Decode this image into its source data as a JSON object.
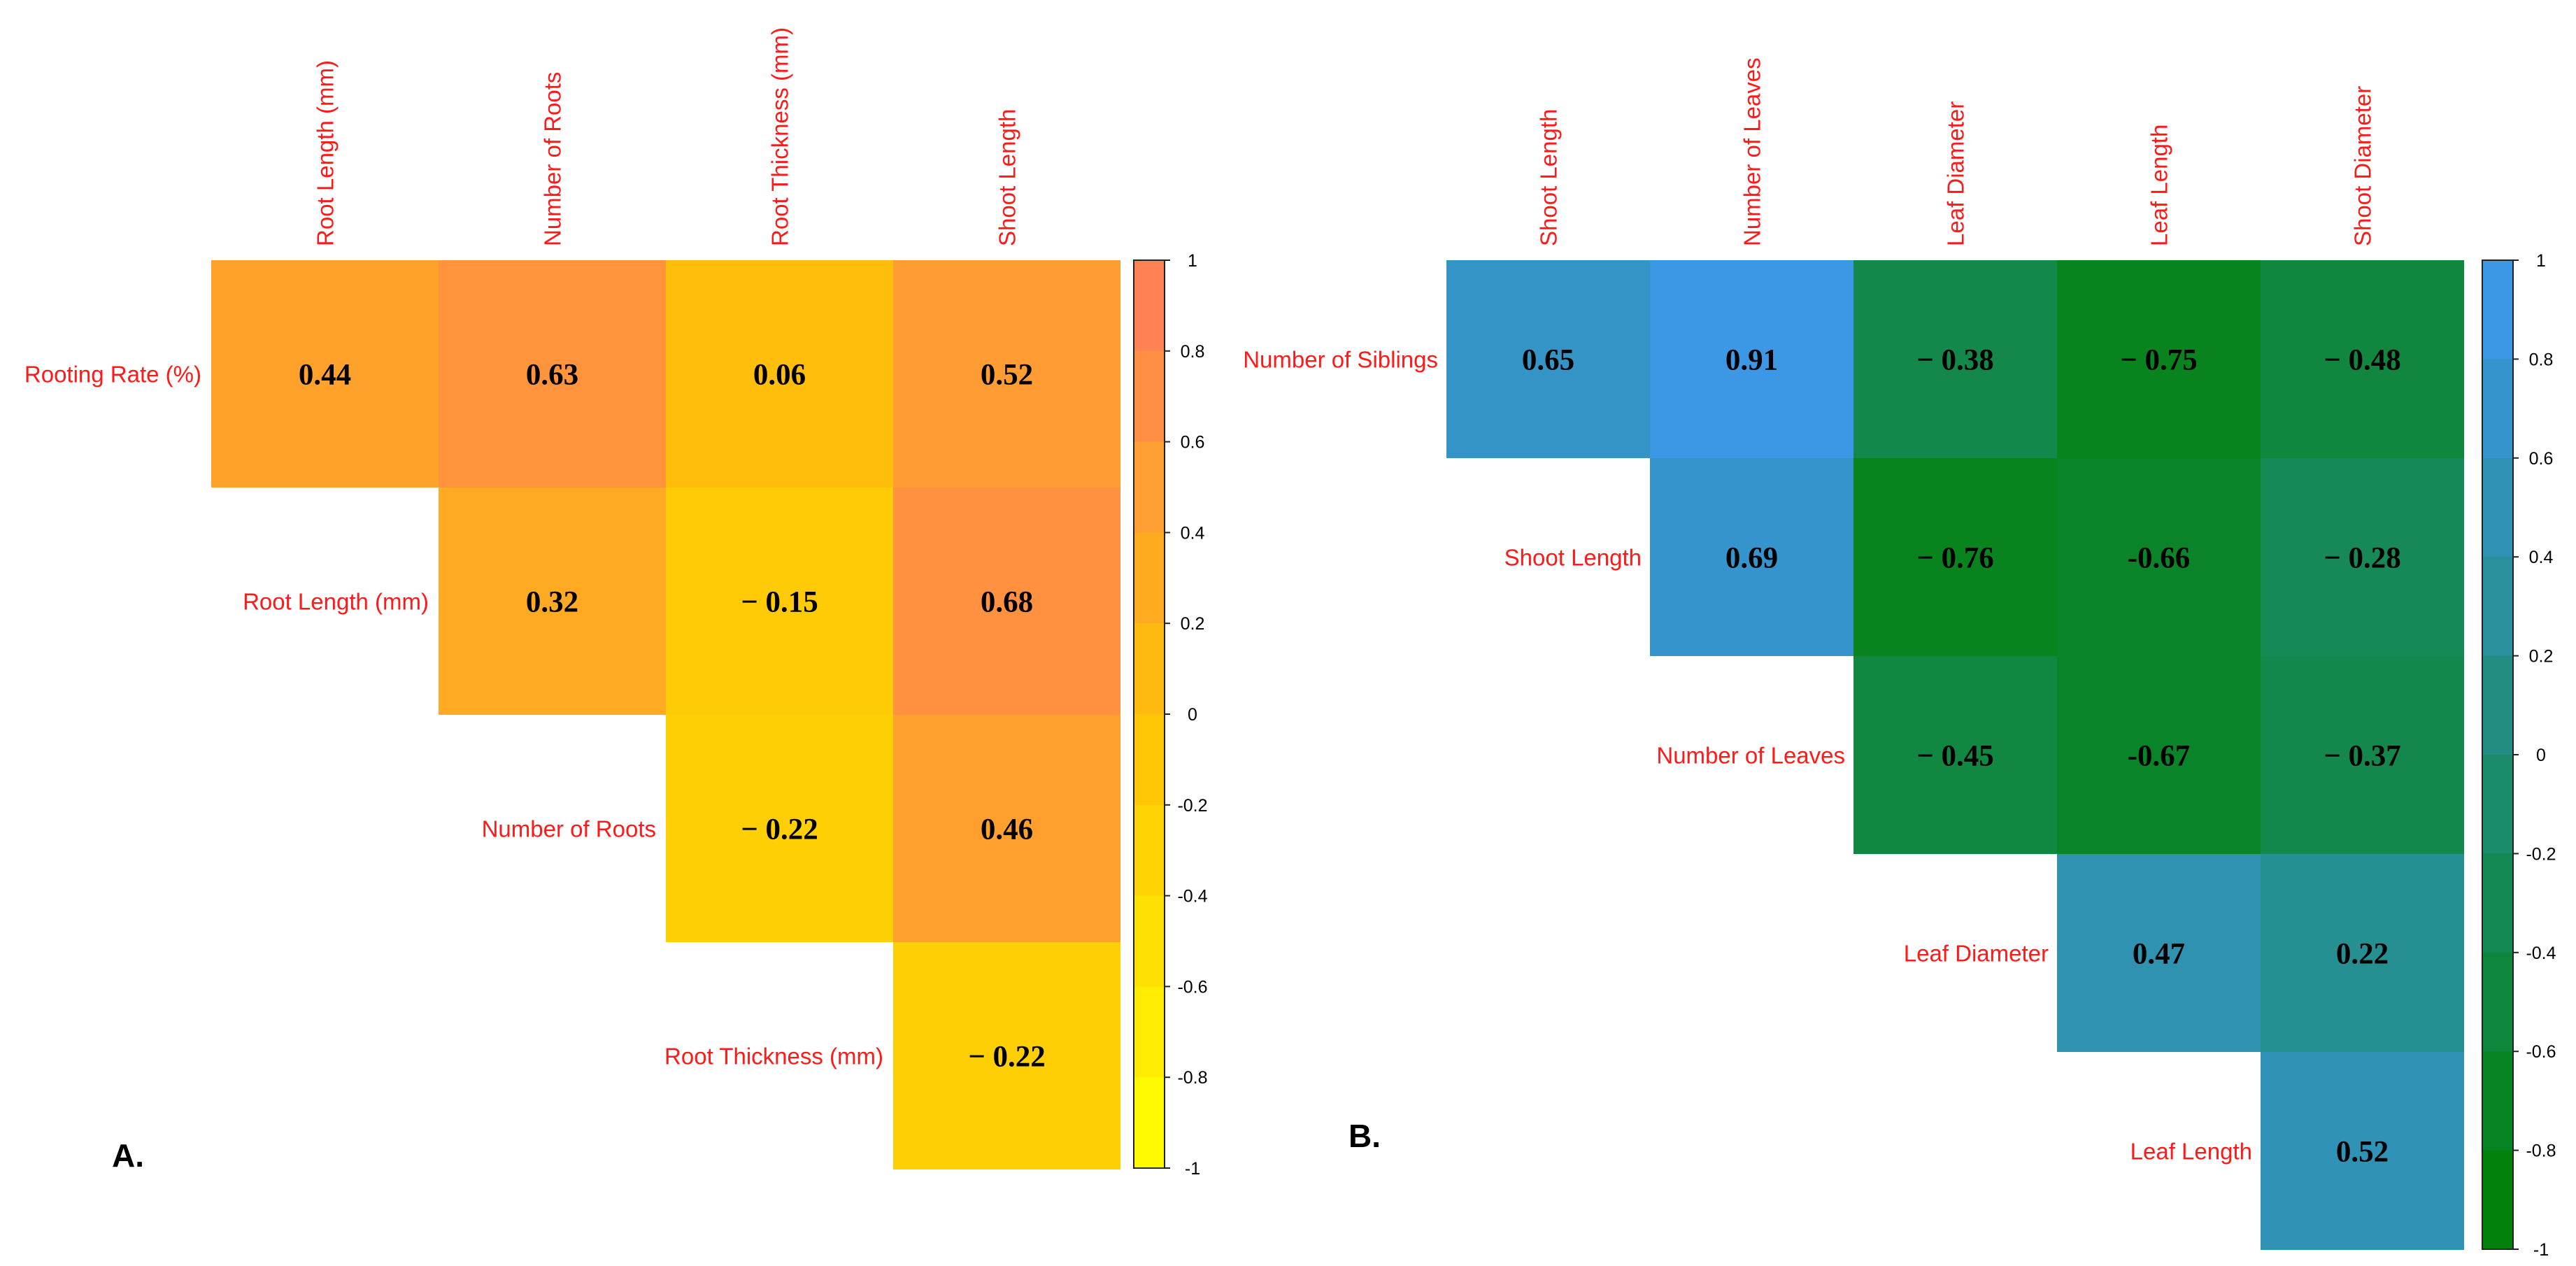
{
  "chart_data": [
    {
      "type": "heatmap",
      "panel_label": "A.",
      "color_scale": {
        "low": "#ffff00",
        "mid": "#ffc107",
        "high": "#ff7a5c"
      },
      "column_labels": [
        "Root Length (mm)",
        "Number of Roots",
        "Root Thickness (mm)",
        "Shoot Length"
      ],
      "row_labels": [
        "Rooting Rate (%)",
        "Root Length (mm)",
        "Number of Roots",
        "Root Thickness (mm)"
      ],
      "cells": [
        [
          {
            "value": 0.44,
            "text": "0.44"
          },
          {
            "value": 0.63,
            "text": "0.63"
          },
          {
            "value": 0.06,
            "text": "0.06"
          },
          {
            "value": 0.52,
            "text": "0.52"
          }
        ],
        [
          null,
          {
            "value": 0.32,
            "text": "0.32"
          },
          {
            "value": -0.15,
            "text": "− 0.15"
          },
          {
            "value": 0.68,
            "text": "0.68"
          }
        ],
        [
          null,
          null,
          {
            "value": -0.22,
            "text": "− 0.22"
          },
          {
            "value": 0.46,
            "text": "0.46"
          }
        ],
        [
          null,
          null,
          null,
          {
            "value": -0.22,
            "text": "− 0.22"
          }
        ]
      ],
      "colorbar_ticks": [
        "1",
        "0.8",
        "0.6",
        "0.4",
        "0.2",
        "0",
        "-0.2",
        "-0.4",
        "-0.6",
        "-0.8",
        "-1"
      ],
      "value_range": [
        -1,
        1
      ]
    },
    {
      "type": "heatmap",
      "panel_label": "B.",
      "color_scale": {
        "low": "#008000",
        "high": "#3f98f0"
      },
      "column_labels": [
        "Shoot Length",
        "Number of Leaves",
        "Leaf Diameter",
        "Leaf Length",
        "Shoot Diameter"
      ],
      "row_labels": [
        "Number of Siblings",
        "Shoot Length",
        "Number of Leaves",
        "Leaf Diameter",
        "Leaf Length"
      ],
      "cells": [
        [
          {
            "value": 0.65,
            "text": "0.65"
          },
          {
            "value": 0.91,
            "text": "0.91"
          },
          {
            "value": -0.38,
            "text": "− 0.38"
          },
          {
            "value": -0.75,
            "text": "− 0.75"
          },
          {
            "value": -0.48,
            "text": "− 0.48"
          }
        ],
        [
          null,
          {
            "value": 0.69,
            "text": "0.69"
          },
          {
            "value": -0.76,
            "text": "− 0.76"
          },
          {
            "value": -0.66,
            "text": "-0.66"
          },
          {
            "value": -0.28,
            "text": "− 0.28"
          }
        ],
        [
          null,
          null,
          {
            "value": -0.45,
            "text": "− 0.45"
          },
          {
            "value": -0.67,
            "text": "-0.67"
          },
          {
            "value": -0.37,
            "text": "− 0.37"
          }
        ],
        [
          null,
          null,
          null,
          {
            "value": 0.47,
            "text": "0.47"
          },
          {
            "value": 0.22,
            "text": "0.22"
          }
        ],
        [
          null,
          null,
          null,
          null,
          {
            "value": 0.52,
            "text": "0.52"
          }
        ]
      ],
      "colorbar_ticks": [
        "1",
        "0.8",
        "0.6",
        "0.4",
        "0.2",
        "0",
        "-0.2",
        "-0.4",
        "-0.6",
        "-0.8",
        "-1"
      ],
      "value_range": [
        -1,
        1
      ]
    }
  ]
}
